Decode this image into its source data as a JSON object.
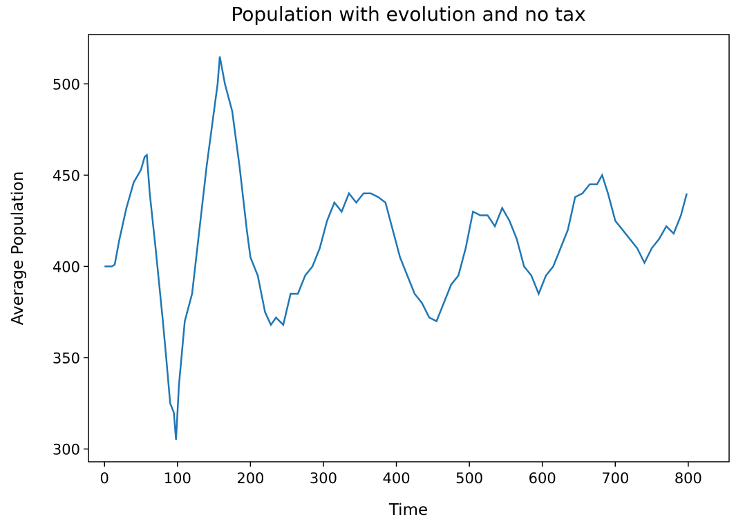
{
  "chart_data": {
    "type": "line",
    "title": "Population with evolution and no tax",
    "xlabel": "Time",
    "ylabel": "Average Population",
    "x": [
      0,
      10,
      14,
      20,
      30,
      40,
      50,
      55,
      58,
      62,
      70,
      80,
      85,
      90,
      95,
      98,
      102,
      110,
      120,
      130,
      140,
      150,
      155,
      158,
      165,
      175,
      185,
      195,
      200,
      210,
      220,
      228,
      235,
      245,
      255,
      265,
      275,
      285,
      295,
      305,
      315,
      325,
      335,
      345,
      355,
      365,
      375,
      385,
      395,
      405,
      415,
      425,
      435,
      445,
      455,
      465,
      475,
      485,
      495,
      505,
      515,
      525,
      535,
      545,
      555,
      565,
      575,
      585,
      595,
      605,
      615,
      625,
      635,
      645,
      655,
      665,
      675,
      682,
      690,
      700,
      710,
      720,
      730,
      740,
      750,
      760,
      770,
      780,
      790,
      798
    ],
    "series": [
      {
        "name": "Average Population",
        "color": "#1f77b4",
        "values": [
          400,
          400,
          401,
          414,
          432,
          446,
          453,
          460,
          461,
          440,
          410,
          370,
          348,
          325,
          320,
          305,
          335,
          370,
          385,
          420,
          455,
          485,
          500,
          515,
          500,
          485,
          455,
          420,
          405,
          395,
          375,
          368,
          372,
          368,
          385,
          385,
          395,
          400,
          410,
          425,
          435,
          430,
          440,
          435,
          440,
          440,
          438,
          435,
          420,
          405,
          395,
          385,
          380,
          372,
          370,
          380,
          390,
          395,
          410,
          430,
          428,
          428,
          422,
          432,
          425,
          415,
          400,
          395,
          385,
          395,
          400,
          410,
          420,
          438,
          440,
          445,
          445,
          450,
          440,
          425,
          420,
          415,
          410,
          402,
          410,
          415,
          422,
          418,
          428,
          440
        ]
      }
    ],
    "xlim": [
      -22,
      856
    ],
    "ylim": [
      293,
      527
    ],
    "xticks": [
      0,
      100,
      200,
      300,
      400,
      500,
      600,
      700,
      800
    ],
    "yticks": [
      300,
      350,
      400,
      450,
      500
    ]
  }
}
